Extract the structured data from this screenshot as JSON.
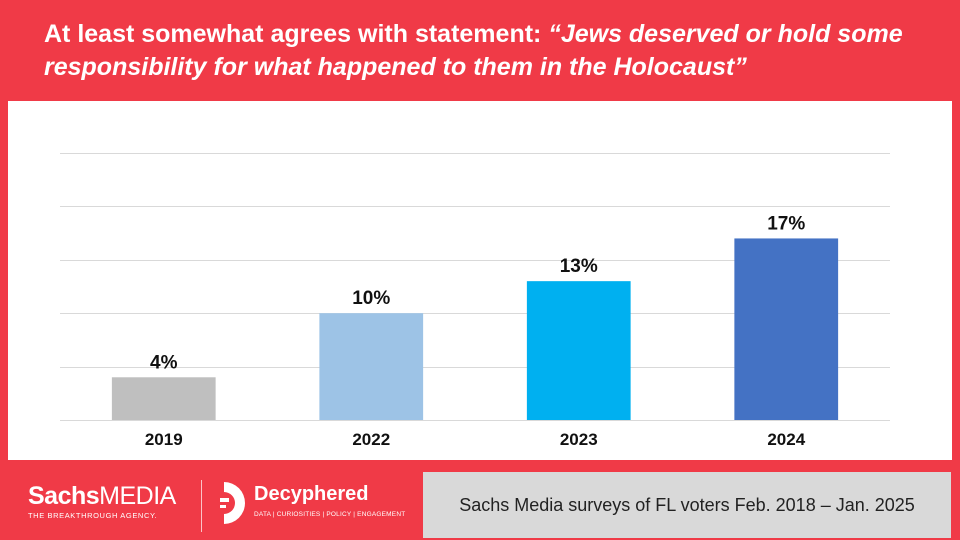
{
  "title": {
    "prefix": "At least somewhat agrees with statement: ",
    "quote": "“Jews deserved or hold some responsibility for what happened to them in the Holocaust”"
  },
  "chart_data": {
    "type": "bar",
    "title": "At least somewhat agrees with statement: “Jews deserved or hold some responsibility for what happened to them in the Holocaust”",
    "categories": [
      "2019",
      "2022",
      "2023",
      "2024"
    ],
    "values": [
      4,
      10,
      13,
      17
    ],
    "value_labels": [
      "4%",
      "10%",
      "13%",
      "17%"
    ],
    "colors": [
      "#bfbfbf",
      "#9dc3e6",
      "#00b0f0",
      "#4472c4"
    ],
    "ylim": [
      0,
      25
    ],
    "ygrid_step": 5,
    "grid": true,
    "xlabel": "",
    "ylabel": ""
  },
  "footer": {
    "sachs_logo": {
      "word_bold": "Sachs",
      "word_light": "MEDIA",
      "tagline": "THE BREAKTHROUGH AGENCY."
    },
    "decyphered_logo": {
      "name": "Decyphered",
      "tagline": "DATA | CURIOSITIES | POLICY | ENGAGEMENT"
    },
    "source": "Sachs Media surveys of FL voters Feb. 2018 – Jan. 2025"
  },
  "colors": {
    "background": "#f03a47",
    "panel": "#ffffff",
    "source_box": "#d9d9d9"
  }
}
